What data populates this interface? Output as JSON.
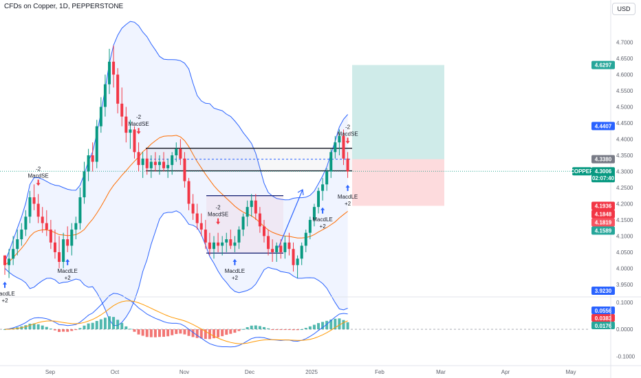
{
  "header": {
    "title": "CFDs on Copper, 1D, PEPPERSTONE",
    "currency_button": "USD"
  },
  "chart_data": {
    "type": "candlestick",
    "symbol": "COPPER",
    "price_axis": {
      "ticks": [
        "4.7000",
        "4.6500",
        "4.6000",
        "4.5500",
        "4.5000",
        "4.4500",
        "4.4000",
        "4.3500",
        "4.3000",
        "4.2500",
        "4.2000",
        "4.1500",
        "4.1000",
        "4.0500",
        "4.0000",
        "3.9500"
      ],
      "ylim": [
        3.92,
        4.78
      ]
    },
    "time_axis": {
      "labels": [
        "Sep",
        "Oct",
        "Nov",
        "Dec",
        "2025",
        "Feb",
        "Mar",
        "Apr",
        "May"
      ]
    },
    "price_labels": [
      {
        "value": "4.6297",
        "color": "#26a69a"
      },
      {
        "value": "4.4407",
        "color": "#2962ff"
      },
      {
        "value": "4.3380",
        "color": "#787b86"
      },
      {
        "value": "4.3006",
        "color": "#089981",
        "sub": "02:07:40",
        "name": "COPPER"
      },
      {
        "value": "4.1936",
        "color": "#f23645"
      },
      {
        "value": "4.1848",
        "color": "#f23645"
      },
      {
        "value": "4.1819",
        "color": "#f7525f"
      },
      {
        "value": "4.1589",
        "color": "#26a69a"
      },
      {
        "value": "3.9230",
        "color": "#2962ff"
      }
    ],
    "macd_axis": {
      "ticks": [
        "0.1000",
        "0.0000",
        "-0.1000"
      ],
      "labels": [
        {
          "value": "0.0556",
          "color": "#2962ff"
        },
        {
          "value": "0.0383",
          "color": "#f23645"
        },
        {
          "value": "0.0176",
          "color": "#26a69a"
        }
      ]
    },
    "annotations": [
      {
        "text": "MacdLE",
        "sub": "+2",
        "dir": "up",
        "date": "2024-08-19"
      },
      {
        "text": "MacdSE",
        "sub": "-2",
        "dir": "down",
        "date": "2024-08-30"
      },
      {
        "text": "MacdLE",
        "sub": "+2",
        "dir": "up",
        "date": "2024-09-09"
      },
      {
        "text": "MacdSE",
        "sub": "-2",
        "dir": "down",
        "date": "2024-10-03"
      },
      {
        "text": "MacdSE",
        "sub": "-2",
        "dir": "down",
        "date": "2024-10-29"
      },
      {
        "text": "MacdLE",
        "sub": "+2",
        "dir": "up",
        "date": "2024-11-04"
      },
      {
        "text": "MacdLE",
        "sub": "+2",
        "dir": "up",
        "date": "2024-12-04"
      },
      {
        "text": "MacdSE",
        "sub": "-2",
        "dir": "down",
        "date": "2024-12-18"
      },
      {
        "text": "MacdLE",
        "sub": "+2",
        "dir": "up",
        "date": "2025-01-06"
      }
    ],
    "drawings": {
      "upper_channel": [
        4.372,
        4.302
      ],
      "lower_channel": [
        4.225,
        4.047
      ],
      "target": 4.6297,
      "entry": 4.338,
      "stop": 4.1936
    },
    "candles": [
      [
        4.04,
        4.04,
        3.98,
        4.01
      ],
      [
        4.01,
        4.06,
        3.97,
        4.03
      ],
      [
        4.03,
        4.1,
        4.01,
        4.06
      ],
      [
        4.06,
        4.12,
        4.04,
        4.09
      ],
      [
        4.09,
        4.14,
        4.07,
        4.12
      ],
      [
        4.12,
        4.18,
        4.1,
        4.16
      ],
      [
        4.16,
        4.24,
        4.14,
        4.22
      ],
      [
        4.22,
        4.26,
        4.18,
        4.2
      ],
      [
        4.2,
        4.23,
        4.14,
        4.16
      ],
      [
        4.16,
        4.19,
        4.11,
        4.14
      ],
      [
        4.14,
        4.18,
        4.1,
        4.12
      ],
      [
        4.12,
        4.15,
        4.06,
        4.08
      ],
      [
        4.08,
        4.12,
        4.03,
        4.05
      ],
      [
        4.05,
        4.1,
        4.0,
        4.02
      ],
      [
        4.02,
        4.11,
        4.0,
        4.09
      ],
      [
        4.09,
        4.13,
        4.05,
        4.07
      ],
      [
        4.07,
        4.14,
        4.04,
        4.12
      ],
      [
        4.12,
        4.16,
        4.09,
        4.14
      ],
      [
        4.14,
        4.25,
        4.12,
        4.22
      ],
      [
        4.22,
        4.33,
        4.2,
        4.3
      ],
      [
        4.3,
        4.37,
        4.27,
        4.35
      ],
      [
        4.35,
        4.39,
        4.3,
        4.33
      ],
      [
        4.33,
        4.46,
        4.31,
        4.44
      ],
      [
        4.44,
        4.53,
        4.42,
        4.5
      ],
      [
        4.5,
        4.6,
        4.47,
        4.57
      ],
      [
        4.57,
        4.68,
        4.54,
        4.64
      ],
      [
        4.64,
        4.69,
        4.56,
        4.6
      ],
      [
        4.6,
        4.62,
        4.48,
        4.51
      ],
      [
        4.51,
        4.56,
        4.44,
        4.47
      ],
      [
        4.47,
        4.5,
        4.39,
        4.42
      ],
      [
        4.42,
        4.46,
        4.37,
        4.43
      ],
      [
        4.43,
        4.44,
        4.34,
        4.36
      ],
      [
        4.36,
        4.39,
        4.3,
        4.32
      ],
      [
        4.32,
        4.36,
        4.28,
        4.34
      ],
      [
        4.34,
        4.37,
        4.29,
        4.31
      ],
      [
        4.31,
        4.35,
        4.28,
        4.33
      ],
      [
        4.33,
        4.36,
        4.3,
        4.32
      ],
      [
        4.32,
        4.35,
        4.29,
        4.33
      ],
      [
        4.33,
        4.36,
        4.3,
        4.31
      ],
      [
        4.31,
        4.34,
        4.28,
        4.32
      ],
      [
        4.32,
        4.36,
        4.29,
        4.35
      ],
      [
        4.35,
        4.39,
        4.33,
        4.37
      ],
      [
        4.37,
        4.4,
        4.32,
        4.34
      ],
      [
        4.34,
        4.36,
        4.25,
        4.27
      ],
      [
        4.27,
        4.28,
        4.18,
        4.2
      ],
      [
        4.2,
        4.23,
        4.15,
        4.17
      ],
      [
        4.17,
        4.2,
        4.12,
        4.14
      ],
      [
        4.14,
        4.17,
        4.1,
        4.12
      ],
      [
        4.12,
        4.15,
        4.06,
        4.08
      ],
      [
        4.08,
        4.11,
        4.04,
        4.06
      ],
      [
        4.06,
        4.1,
        4.03,
        4.08
      ],
      [
        4.08,
        4.11,
        4.05,
        4.07
      ],
      [
        4.07,
        4.1,
        4.04,
        4.08
      ],
      [
        4.08,
        4.11,
        4.05,
        4.09
      ],
      [
        4.09,
        4.12,
        4.06,
        4.07
      ],
      [
        4.07,
        4.1,
        4.05,
        4.08
      ],
      [
        4.08,
        4.13,
        4.06,
        4.12
      ],
      [
        4.12,
        4.17,
        4.1,
        4.16
      ],
      [
        4.16,
        4.21,
        4.13,
        4.19
      ],
      [
        4.19,
        4.23,
        4.16,
        4.21
      ],
      [
        4.21,
        4.23,
        4.15,
        4.17
      ],
      [
        4.17,
        4.19,
        4.11,
        4.13
      ],
      [
        4.13,
        4.15,
        4.08,
        4.1
      ],
      [
        4.1,
        4.12,
        4.04,
        4.06
      ],
      [
        4.06,
        4.09,
        4.02,
        4.05
      ],
      [
        4.05,
        4.08,
        4.02,
        4.07
      ],
      [
        4.07,
        4.09,
        4.03,
        4.05
      ],
      [
        4.05,
        4.1,
        4.03,
        4.08
      ],
      [
        4.08,
        4.11,
        4.04,
        4.06
      ],
      [
        4.06,
        4.08,
        3.99,
        4.01
      ],
      [
        4.01,
        4.04,
        3.97,
        4.03
      ],
      [
        4.03,
        4.08,
        4.01,
        4.07
      ],
      [
        4.07,
        4.12,
        4.05,
        4.11
      ],
      [
        4.11,
        4.16,
        4.09,
        4.15
      ],
      [
        4.15,
        4.2,
        4.13,
        4.19
      ],
      [
        4.19,
        4.25,
        4.17,
        4.24
      ],
      [
        4.24,
        4.28,
        4.21,
        4.26
      ],
      [
        4.26,
        4.31,
        4.24,
        4.3
      ],
      [
        4.3,
        4.37,
        4.28,
        4.36
      ],
      [
        4.36,
        4.41,
        4.34,
        4.39
      ],
      [
        4.39,
        4.43,
        4.35,
        4.41
      ],
      [
        4.41,
        4.43,
        4.32,
        4.34
      ],
      [
        4.34,
        4.36,
        4.28,
        4.3
      ]
    ]
  }
}
